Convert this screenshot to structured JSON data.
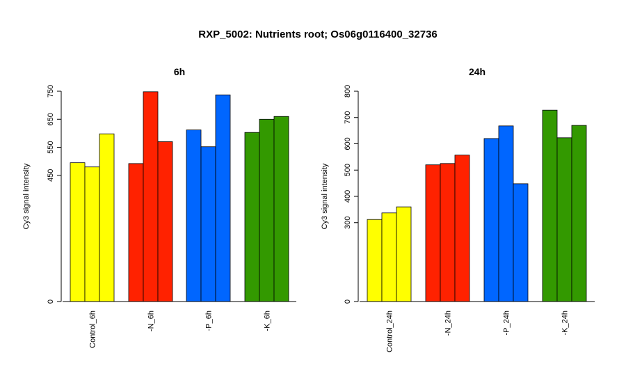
{
  "chart_data": [
    {
      "type": "bar",
      "title": "RXP_5002: Nutrients root; Os06g0116400_32736",
      "subtitle": "6h",
      "ylabel": "Cy3 signal intensity",
      "categories": [
        "Control_6h",
        "-N_6h",
        "-P_6h",
        "-K_6h"
      ],
      "group_colors": [
        "#ffff00",
        "#ff2200",
        "#0066ff",
        "#339900"
      ],
      "values": [
        [
          495,
          480,
          598
        ],
        [
          492,
          748,
          570
        ],
        [
          612,
          552,
          737
        ],
        [
          603,
          650,
          660
        ]
      ],
      "ylim": [
        0,
        750
      ],
      "yticks": [
        0,
        450,
        550,
        650,
        750
      ]
    },
    {
      "type": "bar",
      "subtitle": "24h",
      "ylabel": "Cy3 signal intensity",
      "categories": [
        "Control_24h",
        "-N_24h",
        "-P_24h",
        "-K_24h"
      ],
      "group_colors": [
        "#ffff00",
        "#ff2200",
        "#0066ff",
        "#339900"
      ],
      "values": [
        [
          312,
          337,
          360
        ],
        [
          520,
          525,
          557
        ],
        [
          620,
          668,
          448
        ],
        [
          728,
          623,
          670
        ]
      ],
      "ylim": [
        0,
        800
      ],
      "yticks": [
        0,
        300,
        400,
        500,
        600,
        700,
        800
      ]
    }
  ]
}
